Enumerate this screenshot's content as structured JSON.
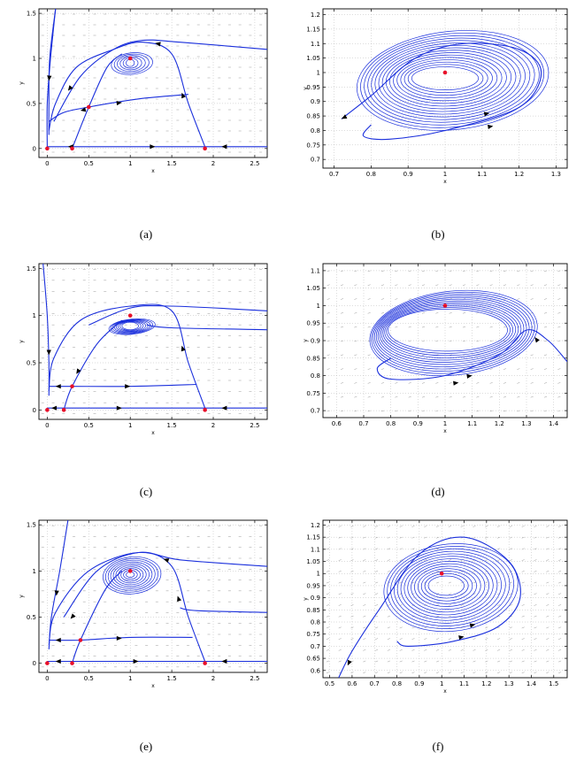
{
  "colors": {
    "trajectory": "#1a2fdc",
    "equilibrium": "#e8102a",
    "vector_field": "#9a9a9a",
    "grid": "#b8b8b8"
  },
  "captions": [
    "(a)",
    "(b)",
    "(c)",
    "(d)",
    "(e)",
    "(f)"
  ],
  "chart_data": [
    {
      "type": "line",
      "title": "",
      "caption": "(a)",
      "xlabel": "x",
      "ylabel": "y",
      "xlim": [
        -0.1,
        2.65
      ],
      "ylim": [
        -0.1,
        1.55
      ],
      "xticks": [
        "0",
        "0.5",
        "1",
        "1.5",
        "2",
        "2.5"
      ],
      "yticks": [
        "0",
        "0.5",
        "1",
        "1.5"
      ],
      "grid": true,
      "equilibria": [
        [
          0,
          0
        ],
        [
          0.3,
          0
        ],
        [
          1.9,
          0
        ],
        [
          0.5,
          0.46
        ],
        [
          1.0,
          1.0
        ]
      ],
      "trajectories": [
        [
          [
            0.0,
            0.0
          ],
          [
            0.0,
            0.5
          ],
          [
            0.04,
            1.0
          ],
          [
            0.1,
            1.55
          ]
        ],
        [
          [
            0.1,
            1.55
          ],
          [
            0.03,
            1.0
          ],
          [
            0.02,
            0.5
          ],
          [
            0.02,
            0.15
          ]
        ],
        [
          [
            0.3,
            0.0
          ],
          [
            0.5,
            0.46
          ],
          [
            0.72,
            0.9
          ],
          [
            0.9,
            1.05
          ]
        ],
        [
          [
            0.02,
            0.2
          ],
          [
            0.1,
            0.5
          ],
          [
            0.35,
            0.9
          ],
          [
            0.8,
            1.1
          ],
          [
            1.15,
            1.18
          ],
          [
            1.5,
            1.05
          ],
          [
            1.7,
            0.5
          ],
          [
            1.9,
            0.02
          ]
        ],
        [
          [
            0.02,
            0.3
          ],
          [
            0.2,
            0.4
          ],
          [
            0.5,
            0.46
          ],
          [
            1.1,
            0.55
          ],
          [
            1.7,
            0.6
          ]
        ],
        [
          [
            2.65,
            1.1
          ],
          [
            1.6,
            1.18
          ],
          [
            1.15,
            1.2
          ],
          [
            0.8,
            1.1
          ],
          [
            0.4,
            0.8
          ],
          [
            0.08,
            0.3
          ]
        ],
        [
          [
            2.65,
            0.02
          ],
          [
            1.0,
            0.02
          ],
          [
            0.0,
            0.02
          ]
        ]
      ],
      "inner_orbit": {
        "center": [
          1.0,
          0.95
        ],
        "rx": [
          0.05,
          0.25
        ],
        "ry": [
          0.04,
          0.12
        ],
        "count": 6
      },
      "arrows": [
        [
          [
            0.03,
            0.85
          ],
          [
            0.02,
            0.75
          ]
        ],
        [
          [
            0.45,
            0.43
          ],
          [
            0.4,
            0.42
          ]
        ],
        [
          [
            0.8,
            0.5
          ],
          [
            0.9,
            0.51
          ]
        ],
        [
          [
            1.65,
            0.55
          ],
          [
            1.62,
            0.62
          ]
        ],
        [
          [
            1.4,
            1.15
          ],
          [
            1.3,
            1.17
          ]
        ],
        [
          [
            0.3,
            0.7
          ],
          [
            0.25,
            0.64
          ]
        ],
        [
          [
            2.2,
            0.02
          ],
          [
            2.1,
            0.02
          ]
        ],
        [
          [
            1.2,
            0.02
          ],
          [
            1.3,
            0.02
          ]
        ],
        [
          [
            0.35,
            0.02
          ],
          [
            0.25,
            0.02
          ]
        ]
      ],
      "vector_field": {
        "nx": 22,
        "ny": 14,
        "dx": -1,
        "dy": 0
      }
    },
    {
      "type": "line",
      "title": "",
      "caption": "(b)",
      "xlabel": "x",
      "ylabel": "y",
      "xlim": [
        0.67,
        1.33
      ],
      "ylim": [
        0.67,
        1.22
      ],
      "xticks": [
        "0.7",
        "0.8",
        "0.9",
        "1",
        "1.1",
        "1.2",
        "1.3"
      ],
      "yticks": [
        "0.7",
        "0.75",
        "0.8",
        "0.85",
        "0.9",
        "0.95",
        "1",
        "1.05",
        "1.1",
        "1.15",
        "1.2"
      ],
      "grid": true,
      "equilibria": [
        [
          1.0,
          1.0
        ]
      ],
      "trajectories": [
        [
          [
            0.72,
            0.84
          ],
          [
            0.8,
            0.92
          ],
          [
            0.92,
            1.05
          ],
          [
            1.05,
            1.1
          ],
          [
            1.2,
            1.08
          ],
          [
            1.26,
            1.0
          ],
          [
            1.2,
            0.88
          ],
          [
            1.0,
            0.8
          ],
          [
            0.85,
            0.77
          ],
          [
            0.78,
            0.78
          ],
          [
            0.8,
            0.82
          ]
        ]
      ],
      "inner_orbit": {
        "center": [
          1.0,
          0.98
        ],
        "rx": [
          0.09,
          0.26
        ],
        "ry": [
          0.04,
          0.17
        ],
        "count": 16
      },
      "arrows": [
        [
          [
            0.75,
            0.86
          ],
          [
            0.72,
            0.84
          ]
        ],
        [
          [
            1.08,
            0.85
          ],
          [
            1.12,
            0.86
          ]
        ],
        [
          [
            1.08,
            0.805
          ],
          [
            1.13,
            0.815
          ]
        ]
      ],
      "vector_field": null
    },
    {
      "type": "line",
      "title": "",
      "caption": "(c)",
      "xlabel": "x",
      "ylabel": "y",
      "xlim": [
        -0.1,
        2.65
      ],
      "ylim": [
        -0.1,
        1.55
      ],
      "xticks": [
        "0",
        "0.5",
        "1",
        "1.5",
        "2",
        "2.5"
      ],
      "yticks": [
        "0",
        "0.5",
        "1",
        "1.5"
      ],
      "grid": true,
      "equilibria": [
        [
          0,
          0
        ],
        [
          0.2,
          0
        ],
        [
          1.9,
          0
        ],
        [
          0.3,
          0.25
        ],
        [
          1.0,
          1.0
        ]
      ],
      "trajectories": [
        [
          [
            -0.05,
            1.55
          ],
          [
            0.0,
            1.0
          ],
          [
            0.02,
            0.5
          ],
          [
            0.02,
            0.15
          ]
        ],
        [
          [
            0.2,
            0.0
          ],
          [
            0.3,
            0.25
          ],
          [
            0.6,
            0.7
          ],
          [
            0.9,
            0.95
          ]
        ],
        [
          [
            0.02,
            0.2
          ],
          [
            0.08,
            0.55
          ],
          [
            0.4,
            0.95
          ],
          [
            1.0,
            1.1
          ],
          [
            1.5,
            1.05
          ],
          [
            1.7,
            0.5
          ],
          [
            1.9,
            0.02
          ]
        ],
        [
          [
            0.02,
            0.25
          ],
          [
            0.3,
            0.25
          ],
          [
            1.0,
            0.25
          ],
          [
            1.8,
            0.27
          ]
        ],
        [
          [
            2.65,
            1.05
          ],
          [
            1.5,
            1.1
          ],
          [
            1.0,
            1.08
          ],
          [
            0.5,
            0.9
          ]
        ],
        [
          [
            2.65,
            0.85
          ],
          [
            1.5,
            0.87
          ],
          [
            1.2,
            0.9
          ]
        ],
        [
          [
            2.65,
            0.02
          ],
          [
            1.0,
            0.02
          ],
          [
            0.0,
            0.02
          ]
        ]
      ],
      "inner_orbit": {
        "center": [
          1.0,
          0.89
        ],
        "rx": [
          0.1,
          0.28
        ],
        "ry": [
          0.04,
          0.08
        ],
        "count": 8
      },
      "arrows": [
        [
          [
            0.02,
            0.7
          ],
          [
            0.02,
            0.58
          ]
        ],
        [
          [
            0.22,
            0.25
          ],
          [
            0.1,
            0.25
          ]
        ],
        [
          [
            0.9,
            0.25
          ],
          [
            1.0,
            0.25
          ]
        ],
        [
          [
            1.65,
            0.6
          ],
          [
            1.62,
            0.68
          ]
        ],
        [
          [
            0.4,
            0.45
          ],
          [
            0.35,
            0.38
          ]
        ],
        [
          [
            2.2,
            0.02
          ],
          [
            2.1,
            0.02
          ]
        ],
        [
          [
            0.8,
            0.02
          ],
          [
            0.9,
            0.02
          ]
        ],
        [
          [
            0.15,
            0.02
          ],
          [
            0.05,
            0.02
          ]
        ]
      ],
      "vector_field": {
        "nx": 22,
        "ny": 14,
        "dx": -1,
        "dy": 0
      }
    },
    {
      "type": "line",
      "title": "",
      "caption": "(d)",
      "xlabel": "x",
      "ylabel": "y",
      "xlim": [
        0.55,
        1.45
      ],
      "ylim": [
        0.68,
        1.12
      ],
      "xticks": [
        "0.6",
        "0.7",
        "0.8",
        "0.9",
        "1",
        "1.1",
        "1.2",
        "1.3",
        "1.4"
      ],
      "yticks": [
        "0.7",
        "0.75",
        "0.8",
        "0.85",
        "0.9",
        "0.95",
        "1",
        "1.05",
        "1.1"
      ],
      "grid": true,
      "equilibria": [
        [
          1.0,
          1.0
        ]
      ],
      "trajectories": [
        [
          [
            1.45,
            0.84
          ],
          [
            1.38,
            0.9
          ],
          [
            1.3,
            0.93
          ],
          [
            1.2,
            0.86
          ],
          [
            1.0,
            0.8
          ],
          [
            0.8,
            0.79
          ],
          [
            0.75,
            0.82
          ],
          [
            0.8,
            0.85
          ]
        ]
      ],
      "inner_orbit": {
        "center": [
          1.01,
          0.93
        ],
        "rx": [
          0.22,
          0.31
        ],
        "ry": [
          0.06,
          0.12
        ],
        "count": 12
      },
      "arrows": [
        [
          [
            1.36,
            0.88
          ],
          [
            1.33,
            0.91
          ]
        ],
        [
          [
            1.05,
            0.795
          ],
          [
            1.1,
            0.8
          ]
        ],
        [
          [
            1.0,
            0.775
          ],
          [
            1.05,
            0.78
          ]
        ]
      ],
      "vector_field": {
        "nx": 18,
        "ny": 11,
        "dx": -1,
        "dy": -0.3
      }
    },
    {
      "type": "line",
      "title": "",
      "caption": "(e)",
      "xlabel": "x",
      "ylabel": "y",
      "xlim": [
        -0.1,
        2.65
      ],
      "ylim": [
        -0.1,
        1.55
      ],
      "xticks": [
        "0",
        "0.5",
        "1",
        "1.5",
        "2",
        "2.5"
      ],
      "yticks": [
        "0",
        "0.5",
        "1",
        "1.5"
      ],
      "grid": true,
      "equilibria": [
        [
          0,
          0
        ],
        [
          0.3,
          0
        ],
        [
          1.9,
          0
        ],
        [
          0.4,
          0.25
        ],
        [
          1.0,
          1.0
        ]
      ],
      "trajectories": [
        [
          [
            0.25,
            1.55
          ],
          [
            0.15,
            1.0
          ],
          [
            0.05,
            0.5
          ],
          [
            0.02,
            0.15
          ]
        ],
        [
          [
            0.3,
            0.0
          ],
          [
            0.4,
            0.25
          ],
          [
            0.7,
            0.8
          ],
          [
            0.9,
            1.0
          ]
        ],
        [
          [
            0.02,
            0.2
          ],
          [
            0.1,
            0.55
          ],
          [
            0.5,
            1.0
          ],
          [
            1.1,
            1.2
          ],
          [
            1.5,
            1.05
          ],
          [
            1.7,
            0.5
          ],
          [
            1.9,
            0.02
          ]
        ],
        [
          [
            0.02,
            0.25
          ],
          [
            0.4,
            0.25
          ],
          [
            1.0,
            0.28
          ],
          [
            1.75,
            0.28
          ]
        ],
        [
          [
            2.65,
            1.05
          ],
          [
            1.6,
            1.12
          ],
          [
            1.1,
            1.2
          ],
          [
            0.6,
            1.0
          ],
          [
            0.2,
            0.5
          ]
        ],
        [
          [
            2.65,
            0.55
          ],
          [
            1.8,
            0.57
          ],
          [
            1.6,
            0.6
          ]
        ],
        [
          [
            2.65,
            0.02
          ],
          [
            1.0,
            0.02
          ],
          [
            0.0,
            0.02
          ]
        ]
      ],
      "inner_orbit": {
        "center": [
          1.0,
          0.96
        ],
        "rx": [
          0.05,
          0.35
        ],
        "ry": [
          0.03,
          0.2
        ],
        "count": 10
      },
      "arrows": [
        [
          [
            0.12,
            0.85
          ],
          [
            0.11,
            0.73
          ]
        ],
        [
          [
            0.2,
            0.25
          ],
          [
            0.1,
            0.25
          ]
        ],
        [
          [
            0.8,
            0.27
          ],
          [
            0.9,
            0.27
          ]
        ],
        [
          [
            1.6,
            0.65
          ],
          [
            1.57,
            0.73
          ]
        ],
        [
          [
            1.5,
            1.1
          ],
          [
            1.4,
            1.13
          ]
        ],
        [
          [
            0.35,
            0.55
          ],
          [
            0.28,
            0.48
          ]
        ],
        [
          [
            2.2,
            0.02
          ],
          [
            2.1,
            0.02
          ]
        ],
        [
          [
            1.0,
            0.02
          ],
          [
            1.1,
            0.02
          ]
        ],
        [
          [
            0.2,
            0.02
          ],
          [
            0.1,
            0.02
          ]
        ]
      ],
      "vector_field": {
        "nx": 22,
        "ny": 14,
        "dx": -1,
        "dy": 0
      }
    },
    {
      "type": "line",
      "title": "",
      "caption": "(f)",
      "xlabel": "x",
      "ylabel": "y",
      "xlim": [
        0.47,
        1.56
      ],
      "ylim": [
        0.57,
        1.22
      ],
      "xticks": [
        "0.5",
        "0.6",
        "0.7",
        "0.8",
        "0.9",
        "1",
        "1.1",
        "1.2",
        "1.3",
        "1.4",
        "1.5"
      ],
      "yticks": [
        "0.6",
        "0.65",
        "0.7",
        "0.75",
        "0.8",
        "0.85",
        "0.9",
        "0.95",
        "1",
        "1.05",
        "1.1",
        "1.15",
        "1.2"
      ],
      "grid": true,
      "equilibria": [
        [
          1.0,
          1.0
        ]
      ],
      "trajectories": [
        [
          [
            0.54,
            0.57
          ],
          [
            0.6,
            0.68
          ],
          [
            0.72,
            0.85
          ],
          [
            0.9,
            1.08
          ],
          [
            1.1,
            1.15
          ],
          [
            1.3,
            1.05
          ],
          [
            1.35,
            0.9
          ],
          [
            1.25,
            0.78
          ],
          [
            1.05,
            0.72
          ],
          [
            0.85,
            0.7
          ],
          [
            0.8,
            0.72
          ]
        ]
      ],
      "inner_orbit": {
        "center": [
          1.02,
          0.95
        ],
        "rx": [
          0.08,
          0.3
        ],
        "ry": [
          0.04,
          0.18
        ],
        "count": 14
      },
      "arrows": [
        [
          [
            0.6,
            0.66
          ],
          [
            0.58,
            0.62
          ]
        ],
        [
          [
            1.1,
            0.78
          ],
          [
            1.15,
            0.79
          ]
        ],
        [
          [
            1.05,
            0.73
          ],
          [
            1.1,
            0.74
          ]
        ]
      ],
      "vector_field": {
        "nx": 20,
        "ny": 14,
        "dx": -1,
        "dy": -0.4
      }
    }
  ]
}
